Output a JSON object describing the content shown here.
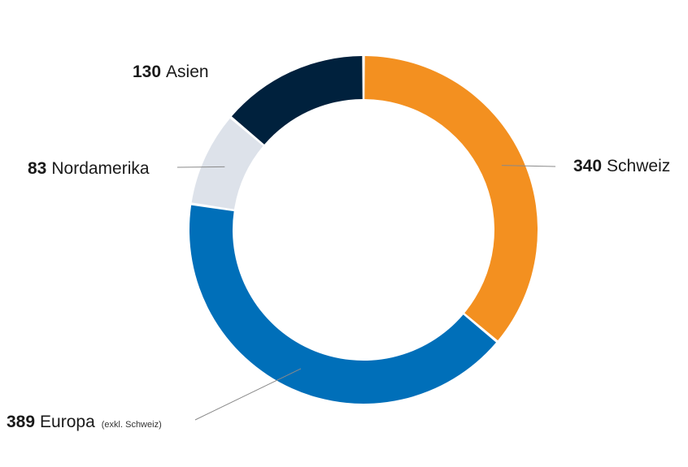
{
  "chart_data": {
    "type": "pie",
    "variant": "donut",
    "title": "",
    "slices": [
      {
        "label": "Schweiz",
        "value": 340,
        "color": "#F39020"
      },
      {
        "label": "Europa",
        "note": "(exkl. Schweiz)",
        "value": 389,
        "color": "#006FB9"
      },
      {
        "label": "Nordamerika",
        "value": 83,
        "color": "#DDE2EA"
      },
      {
        "label": "Asien",
        "value": 130,
        "color": "#00213D"
      }
    ],
    "start_angle_deg": 0,
    "direction": "clockwise",
    "legend": "none"
  }
}
